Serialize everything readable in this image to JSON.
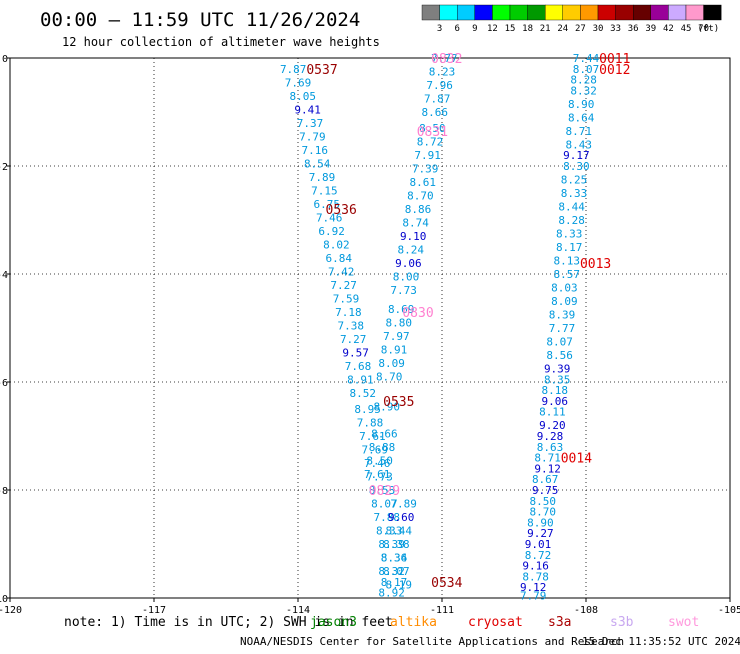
{
  "header": {
    "title": "00:00 — 11:59 UTC 11/26/2024",
    "subtitle": "12 hour collection of altimeter wave heights"
  },
  "colorbar": {
    "colors": [
      "#7f7f7f",
      "#00ffff",
      "#00ccff",
      "#0000ff",
      "#00ff00",
      "#00cc00",
      "#009900",
      "#ffff00",
      "#ffcc00",
      "#ff9900",
      "#cc0000",
      "#990000",
      "#660000",
      "#990099",
      "#ccaaff",
      "#ff99cc",
      "#000000"
    ],
    "labels": [
      "3",
      "6",
      "9",
      "12",
      "15",
      "18",
      "21",
      "24",
      "27",
      "30",
      "33",
      "36",
      "39",
      "42",
      "45",
      "70"
    ],
    "unit": "(ft)"
  },
  "legend": {
    "note": "note: 1) Time is in UTC; 2) SWH is in feet",
    "satellites": [
      {
        "name": "jason3",
        "color": "#008000"
      },
      {
        "name": "altika",
        "color": "#ff8c00"
      },
      {
        "name": "cryosat",
        "color": "#e00000"
      },
      {
        "name": "s3a",
        "color": "#aa0000"
      },
      {
        "name": "s3b",
        "color": "#c8a8f0"
      },
      {
        "name": "swot",
        "color": "#ff99dd"
      }
    ]
  },
  "footer": {
    "credit": "NOAA/NESDIS Center for Satellite Applications and Research",
    "timestamp": "15 Dec 11:35:52 UTC 2024"
  },
  "chart_data": {
    "type": "scatter",
    "xlim": [
      -120,
      -105
    ],
    "ylim": [
      -10,
      0
    ],
    "xticks": [
      -120,
      -117,
      -114,
      -111,
      -108,
      -105
    ],
    "xtick_labels": [
      "-120",
      "-117",
      "-114",
      "-111",
      "-108",
      "-105"
    ],
    "yticks": [
      0,
      -2,
      -4,
      -6,
      -8,
      -10
    ],
    "ytick_labels": [
      "0",
      "-2",
      "-4",
      "-6",
      "-8",
      "-10"
    ],
    "grid": true,
    "pass_labels": [
      {
        "text": "0537",
        "x": -113.5,
        "y": -0.2,
        "color": "#990000"
      },
      {
        "text": "0536",
        "x": -113.1,
        "y": -2.8,
        "color": "#990000"
      },
      {
        "text": "0535",
        "x": -111.9,
        "y": -6.35,
        "color": "#990000"
      },
      {
        "text": "0534",
        "x": -110.9,
        "y": -9.7,
        "color": "#990000"
      },
      {
        "text": "0832",
        "x": -110.9,
        "y": 0.0,
        "color": "#ff80d0"
      },
      {
        "text": "0831",
        "x": -111.2,
        "y": -1.35,
        "color": "#ff80d0"
      },
      {
        "text": "0830",
        "x": -111.5,
        "y": -4.7,
        "color": "#ff80d0"
      },
      {
        "text": "0829",
        "x": -112.2,
        "y": -8.0,
        "color": "#ff80d0"
      },
      {
        "text": "0011",
        "x": -107.4,
        "y": 0.0,
        "color": "#e00000"
      },
      {
        "text": "0012",
        "x": -107.4,
        "y": -0.2,
        "color": "#e00000"
      },
      {
        "text": "0013",
        "x": -107.8,
        "y": -3.8,
        "color": "#e00000"
      },
      {
        "text": "0014",
        "x": -108.2,
        "y": -7.4,
        "color": "#e00000"
      }
    ],
    "series": [
      {
        "name": "s3a",
        "points": [
          {
            "x": -114.1,
            "y": -0.2,
            "v": "7.87"
          },
          {
            "x": -114.0,
            "y": -0.45,
            "v": "7.69"
          },
          {
            "x": -113.9,
            "y": -0.7,
            "v": "8.05"
          },
          {
            "x": -113.8,
            "y": -0.95,
            "v": "9.41"
          },
          {
            "x": -113.75,
            "y": -1.2,
            "v": "7.37"
          },
          {
            "x": -113.7,
            "y": -1.45,
            "v": "7.79"
          },
          {
            "x": -113.65,
            "y": -1.7,
            "v": "7.16"
          },
          {
            "x": -113.6,
            "y": -1.95,
            "v": "8.54"
          },
          {
            "x": -113.5,
            "y": -2.2,
            "v": "7.89"
          },
          {
            "x": -113.45,
            "y": -2.45,
            "v": "7.15"
          },
          {
            "x": -113.4,
            "y": -2.7,
            "v": "6.75"
          },
          {
            "x": -113.35,
            "y": -2.95,
            "v": "7.46"
          },
          {
            "x": -113.3,
            "y": -3.2,
            "v": "6.92"
          },
          {
            "x": -113.2,
            "y": -3.45,
            "v": "8.02"
          },
          {
            "x": -113.15,
            "y": -3.7,
            "v": "6.84"
          },
          {
            "x": -113.1,
            "y": -3.95,
            "v": "7.42"
          },
          {
            "x": -113.05,
            "y": -4.2,
            "v": "7.27"
          },
          {
            "x": -113.0,
            "y": -4.45,
            "v": "7.59"
          },
          {
            "x": -112.95,
            "y": -4.7,
            "v": "7.18"
          },
          {
            "x": -112.9,
            "y": -4.95,
            "v": "7.38"
          },
          {
            "x": -112.85,
            "y": -5.2,
            "v": "7.27"
          },
          {
            "x": -112.8,
            "y": -5.45,
            "v": "9.57"
          },
          {
            "x": -112.75,
            "y": -5.7,
            "v": "7.68"
          },
          {
            "x": -112.7,
            "y": -5.95,
            "v": "8.91"
          },
          {
            "x": -112.65,
            "y": -6.2,
            "v": "8.52"
          },
          {
            "x": -112.55,
            "y": -6.5,
            "v": "8.95"
          },
          {
            "x": -112.5,
            "y": -6.75,
            "v": "7.88"
          },
          {
            "x": -112.45,
            "y": -7.0,
            "v": "7.61"
          },
          {
            "x": -112.4,
            "y": -7.25,
            "v": "7.69"
          },
          {
            "x": -112.35,
            "y": -7.5,
            "v": "7.46"
          },
          {
            "x": -112.3,
            "y": -7.75,
            "v": "7.73"
          },
          {
            "x": -112.25,
            "y": -8.0,
            "v": "8.53"
          },
          {
            "x": -112.2,
            "y": -8.25,
            "v": "8.07"
          },
          {
            "x": -112.15,
            "y": -8.5,
            "v": "7.88"
          },
          {
            "x": -112.1,
            "y": -8.75,
            "v": "8.33"
          },
          {
            "x": -112.05,
            "y": -9.0,
            "v": "8.39"
          },
          {
            "x": -112.0,
            "y": -9.25,
            "v": "8.34"
          },
          {
            "x": -111.95,
            "y": -9.5,
            "v": "8.07"
          },
          {
            "x": -111.9,
            "y": -9.75,
            "v": "8.19"
          }
        ]
      },
      {
        "name": "swot",
        "points": [
          {
            "x": -110.95,
            "y": 0.0,
            "v": "7.77"
          },
          {
            "x": -111.0,
            "y": -0.25,
            "v": "8.23"
          },
          {
            "x": -111.05,
            "y": -0.5,
            "v": "7.96"
          },
          {
            "x": -111.1,
            "y": -0.75,
            "v": "7.87"
          },
          {
            "x": -111.15,
            "y": -1.0,
            "v": "8.66"
          },
          {
            "x": -111.2,
            "y": -1.3,
            "v": "8.50"
          },
          {
            "x": -111.25,
            "y": -1.55,
            "v": "8.72"
          },
          {
            "x": -111.3,
            "y": -1.8,
            "v": "7.91"
          },
          {
            "x": -111.35,
            "y": -2.05,
            "v": "7.39"
          },
          {
            "x": -111.4,
            "y": -2.3,
            "v": "8.61"
          },
          {
            "x": -111.45,
            "y": -2.55,
            "v": "8.70"
          },
          {
            "x": -111.5,
            "y": -2.8,
            "v": "8.86"
          },
          {
            "x": -111.55,
            "y": -3.05,
            "v": "8.74"
          },
          {
            "x": -111.6,
            "y": -3.3,
            "v": "9.10"
          },
          {
            "x": -111.65,
            "y": -3.55,
            "v": "8.24"
          },
          {
            "x": -111.7,
            "y": -3.8,
            "v": "9.06"
          },
          {
            "x": -111.75,
            "y": -4.05,
            "v": "8.00"
          },
          {
            "x": -111.8,
            "y": -4.3,
            "v": "7.73"
          },
          {
            "x": -111.85,
            "y": -4.65,
            "v": "8.69"
          },
          {
            "x": -111.9,
            "y": -4.9,
            "v": "8.80"
          },
          {
            "x": -111.95,
            "y": -5.15,
            "v": "7.97"
          },
          {
            "x": -112.0,
            "y": -5.4,
            "v": "8.91"
          },
          {
            "x": -112.05,
            "y": -5.65,
            "v": "8.09"
          },
          {
            "x": -112.1,
            "y": -5.9,
            "v": "8.70"
          },
          {
            "x": -112.15,
            "y": -6.45,
            "v": "8.90"
          },
          {
            "x": -112.2,
            "y": -6.95,
            "v": "8.66"
          },
          {
            "x": -112.25,
            "y": -7.2,
            "v": "8.88"
          },
          {
            "x": -112.3,
            "y": -7.45,
            "v": "8.50"
          },
          {
            "x": -112.35,
            "y": -7.7,
            "v": "7.61"
          },
          {
            "x": -111.8,
            "y": -8.25,
            "v": "7.89"
          },
          {
            "x": -111.85,
            "y": -8.5,
            "v": "9.60"
          },
          {
            "x": -111.9,
            "y": -8.75,
            "v": "8.44"
          },
          {
            "x": -111.95,
            "y": -9.0,
            "v": "8.38"
          },
          {
            "x": -112.0,
            "y": -9.25,
            "v": "8.36"
          },
          {
            "x": -112.05,
            "y": -9.5,
            "v": "8.32"
          },
          {
            "x": -112.0,
            "y": -9.7,
            "v": "8.17"
          },
          {
            "x": -112.05,
            "y": -9.9,
            "v": "8.92"
          }
        ]
      },
      {
        "name": "cryosat",
        "points": [
          {
            "x": -108.0,
            "y": 0.0,
            "v": "7.44"
          },
          {
            "x": -108.0,
            "y": -0.2,
            "v": "8.07"
          },
          {
            "x": -108.05,
            "y": -0.4,
            "v": "8.28"
          },
          {
            "x": -108.05,
            "y": -0.6,
            "v": "8.32"
          },
          {
            "x": -108.1,
            "y": -0.85,
            "v": "8.90"
          },
          {
            "x": -108.1,
            "y": -1.1,
            "v": "8.64"
          },
          {
            "x": -108.15,
            "y": -1.35,
            "v": "8.71"
          },
          {
            "x": -108.15,
            "y": -1.6,
            "v": "8.43"
          },
          {
            "x": -108.2,
            "y": -1.8,
            "v": "9.17"
          },
          {
            "x": -108.2,
            "y": -2.0,
            "v": "8.30"
          },
          {
            "x": -108.25,
            "y": -2.25,
            "v": "8.25"
          },
          {
            "x": -108.25,
            "y": -2.5,
            "v": "8.33"
          },
          {
            "x": -108.3,
            "y": -2.75,
            "v": "8.44"
          },
          {
            "x": -108.3,
            "y": -3.0,
            "v": "8.28"
          },
          {
            "x": -108.35,
            "y": -3.25,
            "v": "8.33"
          },
          {
            "x": -108.35,
            "y": -3.5,
            "v": "8.17"
          },
          {
            "x": -108.4,
            "y": -3.75,
            "v": "8.13"
          },
          {
            "x": -108.4,
            "y": -4.0,
            "v": "8.57"
          },
          {
            "x": -108.45,
            "y": -4.25,
            "v": "8.03"
          },
          {
            "x": -108.45,
            "y": -4.5,
            "v": "8.09"
          },
          {
            "x": -108.5,
            "y": -4.75,
            "v": "8.39"
          },
          {
            "x": -108.5,
            "y": -5.0,
            "v": "7.77"
          },
          {
            "x": -108.55,
            "y": -5.25,
            "v": "8.07"
          },
          {
            "x": -108.55,
            "y": -5.5,
            "v": "8.56"
          },
          {
            "x": -108.6,
            "y": -5.75,
            "v": "9.39"
          },
          {
            "x": -108.6,
            "y": -5.95,
            "v": "8.35"
          },
          {
            "x": -108.65,
            "y": -6.15,
            "v": "8.18"
          },
          {
            "x": -108.65,
            "y": -6.35,
            "v": "9.06"
          },
          {
            "x": -108.7,
            "y": -6.55,
            "v": "8.11"
          },
          {
            "x": -108.7,
            "y": -6.8,
            "v": "9.20"
          },
          {
            "x": -108.75,
            "y": -7.0,
            "v": "9.28"
          },
          {
            "x": -108.75,
            "y": -7.2,
            "v": "8.63"
          },
          {
            "x": -108.8,
            "y": -7.4,
            "v": "8.71"
          },
          {
            "x": -108.8,
            "y": -7.6,
            "v": "9.12"
          },
          {
            "x": -108.85,
            "y": -7.8,
            "v": "8.67"
          },
          {
            "x": -108.85,
            "y": -8.0,
            "v": "9.75"
          },
          {
            "x": -108.9,
            "y": -8.2,
            "v": "8.50"
          },
          {
            "x": -108.9,
            "y": -8.4,
            "v": "8.70"
          },
          {
            "x": -108.95,
            "y": -8.6,
            "v": "8.90"
          },
          {
            "x": -108.95,
            "y": -8.8,
            "v": "9.27"
          },
          {
            "x": -109.0,
            "y": -9.0,
            "v": "9.01"
          },
          {
            "x": -109.0,
            "y": -9.2,
            "v": "8.72"
          },
          {
            "x": -109.05,
            "y": -9.4,
            "v": "9.16"
          },
          {
            "x": -109.05,
            "y": -9.6,
            "v": "8.78"
          },
          {
            "x": -109.1,
            "y": -9.8,
            "v": "9.12"
          },
          {
            "x": -109.1,
            "y": -9.95,
            "v": "7.79"
          }
        ]
      }
    ]
  }
}
